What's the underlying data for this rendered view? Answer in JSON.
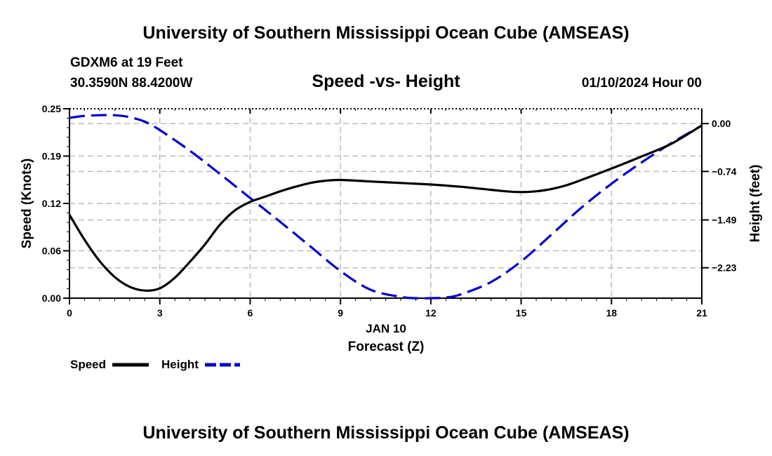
{
  "header": {
    "title": "University of Southern Mississippi Ocean Cube (AMSEAS)",
    "station": "GDXM6 at 19 Feet",
    "location": "30.3590N  88.4200W",
    "subtitle": "Speed -vs- Height",
    "datetime": "01/10/2024 Hour 00",
    "footer_title": "University of Southern Mississippi Ocean Cube (AMSEAS)"
  },
  "chart_data": {
    "type": "line",
    "title": "Speed -vs- Height",
    "xlabel": "Forecast (Z)",
    "xlabel_date": "JAN 10",
    "ylabel": "Speed (Knots)",
    "y2label": "Height (feet)",
    "xlim": [
      0,
      21
    ],
    "ylim": [
      0,
      0.25
    ],
    "y2lim": [
      -2.7,
      0.23
    ],
    "xticks": [
      0,
      3,
      6,
      9,
      12,
      15,
      18,
      21
    ],
    "xtick_labels": [
      "0",
      "3",
      "6",
      "9",
      "12",
      "15",
      "18",
      "21"
    ],
    "yticks": [
      0,
      0.0625,
      0.125,
      0.1875,
      0.25
    ],
    "ytick_labels": [
      "0.00",
      "0.06",
      "0.12",
      "0.19",
      "0.25"
    ],
    "y2ticks": [
      0,
      -0.74,
      -1.49,
      -2.23
    ],
    "y2tick_labels": [
      "0.00",
      "−0.74",
      "−1.49",
      "−2.23"
    ],
    "grid": true,
    "series": [
      {
        "name": "Speed",
        "axis": "left",
        "color": "#000000",
        "dash": "solid",
        "x": [
          0,
          0.5,
          1,
          1.5,
          2,
          2.5,
          3,
          3.5,
          4,
          4.5,
          5,
          5.5,
          6,
          6.5,
          7,
          7.5,
          8,
          8.5,
          9,
          10,
          11,
          12,
          13,
          14,
          14.5,
          15,
          15.5,
          16,
          16.5,
          17,
          18,
          19,
          20,
          21
        ],
        "values": [
          0.11,
          0.077,
          0.049,
          0.028,
          0.015,
          0.01,
          0.013,
          0.027,
          0.048,
          0.071,
          0.097,
          0.116,
          0.127,
          0.134,
          0.141,
          0.147,
          0.152,
          0.155,
          0.156,
          0.154,
          0.152,
          0.15,
          0.147,
          0.143,
          0.141,
          0.14,
          0.141,
          0.144,
          0.149,
          0.156,
          0.171,
          0.187,
          0.204,
          0.228
        ]
      },
      {
        "name": "Height",
        "axis": "right",
        "color": "#0000cc",
        "dash": "dashed",
        "x": [
          0,
          0.5,
          1,
          1.5,
          2,
          2.5,
          3,
          4,
          5,
          6,
          7,
          8,
          9,
          10,
          11,
          11.5,
          12,
          12.5,
          13,
          14,
          15,
          16,
          17,
          18,
          19,
          20,
          21
        ],
        "values": [
          0.09,
          0.12,
          0.13,
          0.13,
          0.1,
          0.03,
          -0.1,
          -0.42,
          -0.78,
          -1.15,
          -1.52,
          -1.9,
          -2.28,
          -2.57,
          -2.68,
          -2.7,
          -2.7,
          -2.69,
          -2.64,
          -2.45,
          -2.13,
          -1.72,
          -1.3,
          -0.93,
          -0.6,
          -0.3,
          -0.03
        ]
      }
    ],
    "legend": [
      {
        "label": "Speed",
        "color": "#000000",
        "dash": "solid"
      },
      {
        "label": "Height",
        "color": "#0000cc",
        "dash": "dashed"
      }
    ],
    "legend_position": "bottom-left"
  }
}
